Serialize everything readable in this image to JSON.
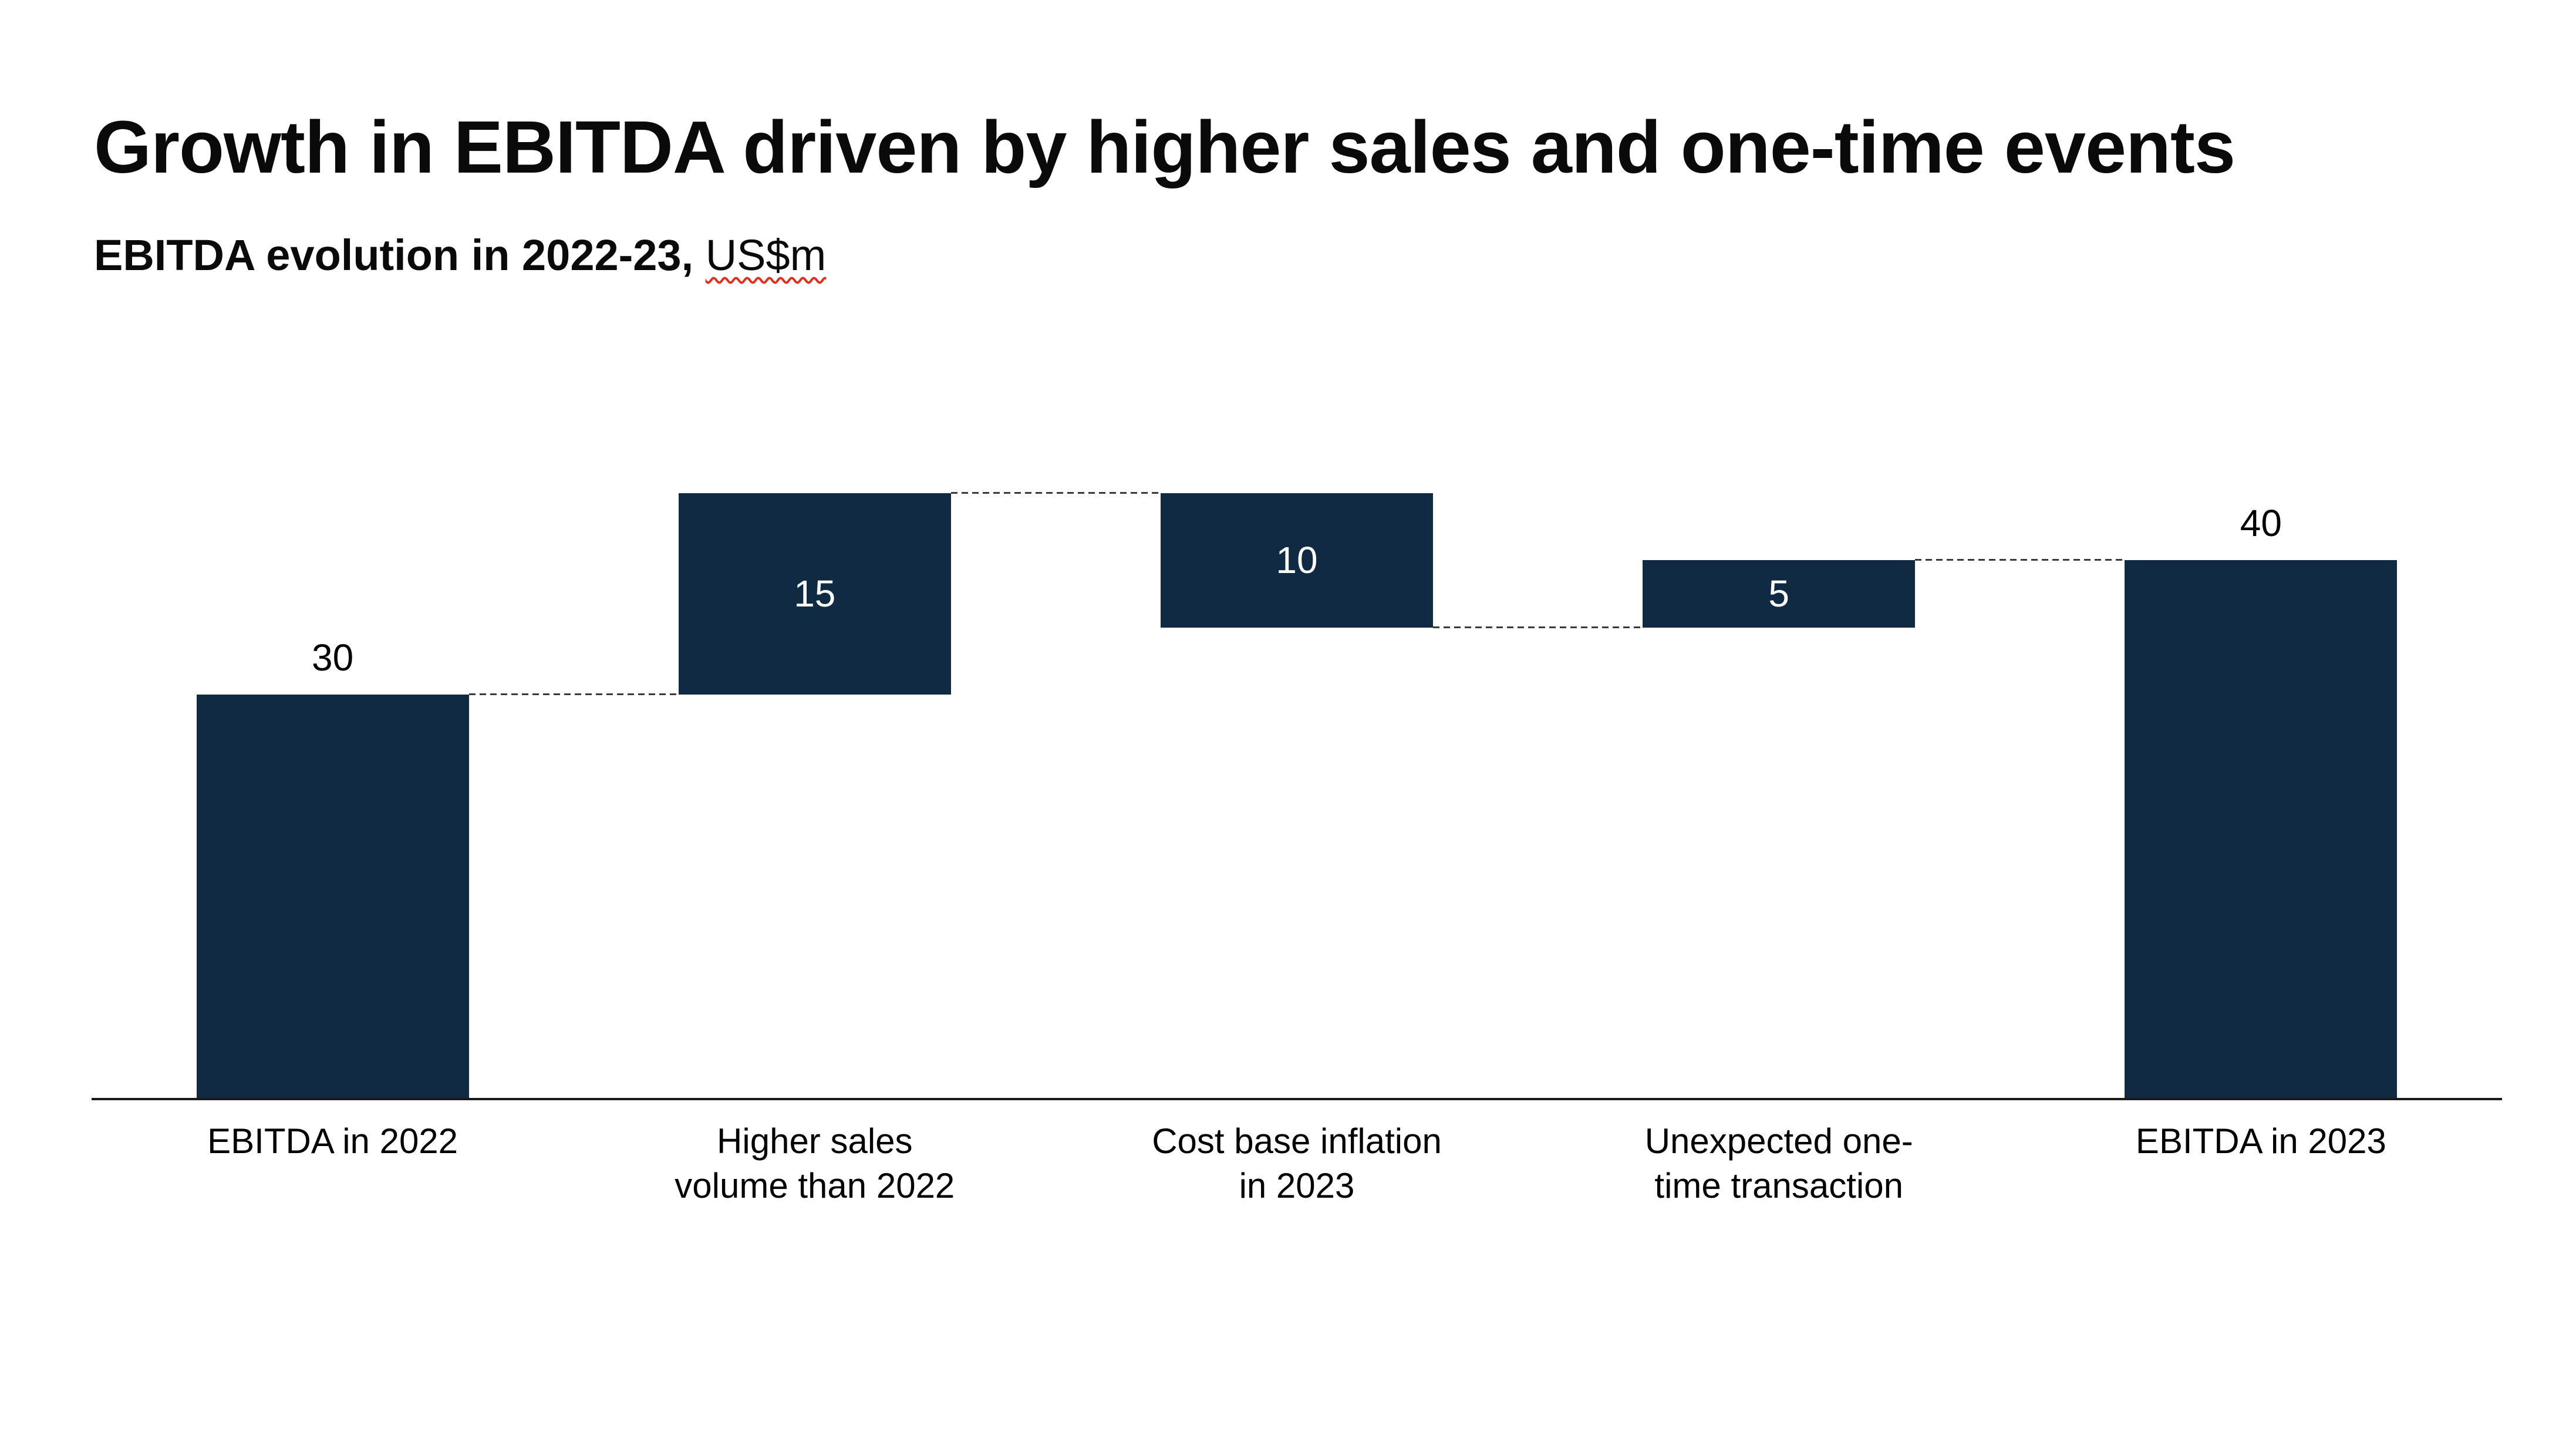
{
  "header": {
    "title": "Growth in EBITDA driven by higher sales and one-time events",
    "subtitle_bold": "EBITDA evolution in 2022-23,",
    "subtitle_unit": "US$m"
  },
  "chart_data": {
    "type": "bar",
    "subtype": "waterfall",
    "title": "Growth in EBITDA driven by higher sales and one-time events",
    "subtitle": "EBITDA evolution in 2022-23, US$m",
    "unit": "US$m",
    "ylim": [
      0,
      45
    ],
    "grid": false,
    "legend": false,
    "categories": [
      "EBITDA in 2022",
      "Higher sales volume than 2022",
      "Cost base inflation in 2023",
      "Unexpected one-time transaction",
      "EBITDA in 2023"
    ],
    "category_label_lines": [
      [
        "EBITDA in 2022"
      ],
      [
        "Higher sales",
        "volume than 2022"
      ],
      [
        "Cost base inflation",
        "in 2023"
      ],
      [
        "Unexpected one-",
        "time transaction"
      ],
      [
        "EBITDA in 2023"
      ]
    ],
    "steps": [
      {
        "label": "EBITDA in 2022",
        "value": 30,
        "displayed_value": "30",
        "start": 0,
        "end": 30,
        "role": "total",
        "value_label_position": "above"
      },
      {
        "label": "Higher sales volume than 2022",
        "value": 15,
        "displayed_value": "15",
        "start": 30,
        "end": 45,
        "role": "increase",
        "value_label_position": "inside"
      },
      {
        "label": "Cost base inflation in 2023",
        "value": -10,
        "displayed_value": "10",
        "start": 45,
        "end": 35,
        "role": "decrease",
        "value_label_position": "inside"
      },
      {
        "label": "Unexpected one-time transaction",
        "value": 5,
        "displayed_value": "5",
        "start": 35,
        "end": 40,
        "role": "increase",
        "value_label_position": "inside"
      },
      {
        "label": "EBITDA in 2023",
        "value": 40,
        "displayed_value": "40",
        "start": 0,
        "end": 40,
        "role": "total",
        "value_label_position": "above"
      }
    ],
    "colors": {
      "bar": "#0f2a42",
      "connector": "#3a3a3a",
      "axis": "#1a1a1a",
      "value_label_above": "#000000",
      "value_label_inside": "#ffffff",
      "spellcheck_underline": "#e0301e",
      "background": "#ffffff"
    }
  }
}
